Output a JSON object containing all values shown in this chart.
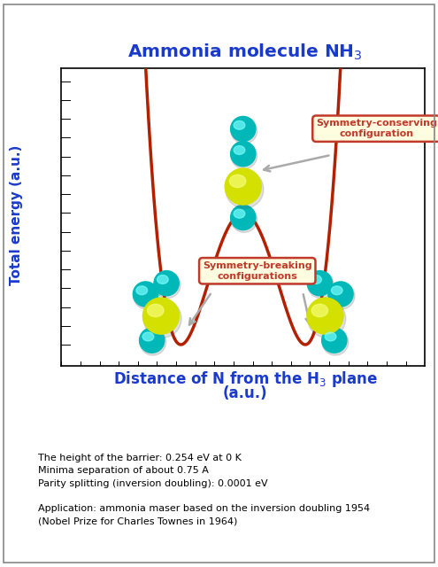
{
  "title": "Ammonia molecule NH$_3$",
  "xlabel_line1": "Distance of N from the H$_3$ plane",
  "xlabel_line2": "(a.u.)",
  "ylabel": "Total energy (a.u.)",
  "curve_color": "#b22000",
  "curve_lw": 2.5,
  "bg_color": "#ffffff",
  "plot_bg": "#f0f0f0",
  "box_bg": "#fffde0",
  "box_edge": "#c0392b",
  "annotation_color": "#c0392b",
  "title_color": "#1a3acc",
  "xlabel_color": "#1a3acc",
  "ylabel_color": "#1a3acc",
  "sym_break_label": "Symmetry-breaking\nconfigurations",
  "sym_cons_label": "Symmetry-conserving\nconfiguration",
  "info_text": "The height of the barrier: 0.254 eV at 0 K\nMinima separation of about 0.75 A\nParity splitting (inversion doubling): 0.0001 eV\n\nApplication: ammonia maser based on the inversion doubling 1954\n(Nobel Prize for Charles Townes in 1964)",
  "nitrogen_color": "#d4e000",
  "hydrogen_color": "#00b8b8",
  "N_highlight": "#f8ff80",
  "H_highlight": "#80ffff"
}
